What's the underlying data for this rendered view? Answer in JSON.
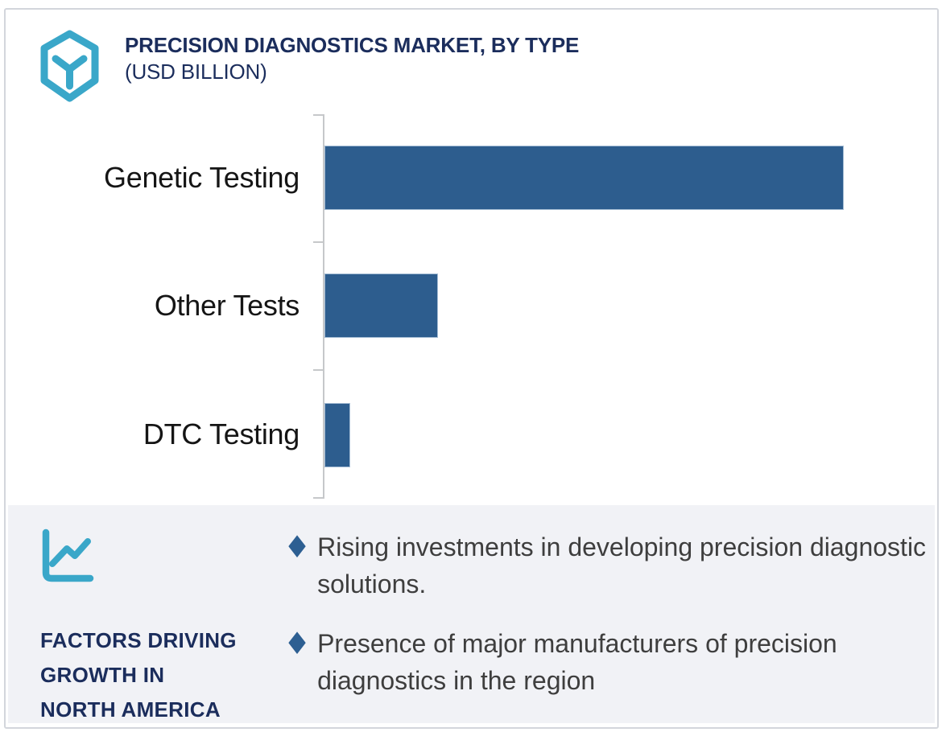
{
  "header": {
    "title": "PRECISION DIAGNOSTICS MARKET, BY TYPE",
    "subtitle": "(USD BILLION)",
    "logo_icon": "hexagon-y-logo-icon",
    "title_color": "#1b2d5c"
  },
  "chart_data": {
    "type": "bar",
    "orientation": "horizontal",
    "title": "PRECISION DIAGNOSTICS MARKET, BY TYPE (USD BILLION)",
    "categories": [
      "Genetic Testing",
      "Other Tests",
      "DTC Testing"
    ],
    "values_relative_pct_of_max": [
      100,
      21.8,
      5.0
    ],
    "value_axis_labels": "none",
    "data_labels": "none",
    "bar_color": "#2d5d8e",
    "axis_color": "#c6c8ca",
    "grid": false,
    "legend": false
  },
  "factors": {
    "icon": "line-chart-icon",
    "title_lines": [
      "FACTORS DRIVING",
      "GROWTH IN",
      "NORTH AMERICA"
    ],
    "bullet_marker": "diamond",
    "bullets": [
      "Rising investments in developing precision diagnostic solutions.",
      "Presence of major manufacturers of precision diagnostics in the region"
    ],
    "panel_bg": "#f1f2f6",
    "accent_teal": "#3aa7c9",
    "bullet_color": "#2d5f92"
  }
}
